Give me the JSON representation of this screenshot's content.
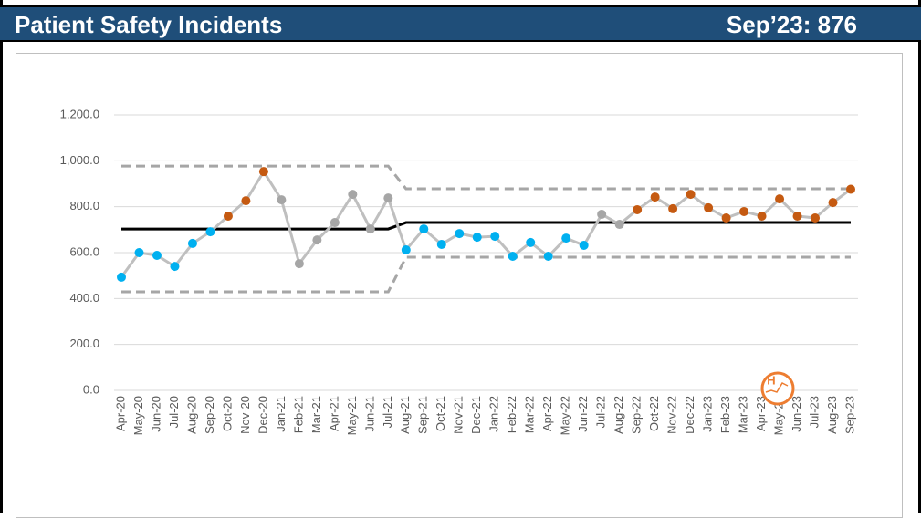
{
  "header": {
    "title": "Patient Safety Incidents",
    "kpi": "Sep’23: 876"
  },
  "icon_label": "H",
  "chart_data": {
    "type": "line",
    "categories": [
      "Apr-20",
      "May-20",
      "Jun-20",
      "Jul-20",
      "Aug-20",
      "Sep-20",
      "Oct-20",
      "Nov-20",
      "Dec-20",
      "Jan-21",
      "Feb-21",
      "Mar-21",
      "Apr-21",
      "May-21",
      "Jun-21",
      "Jul-21",
      "Aug-21",
      "Sep-21",
      "Oct-21",
      "Nov-21",
      "Dec-21",
      "Jan-22",
      "Feb-22",
      "Mar-22",
      "Apr-22",
      "May-22",
      "Jun-22",
      "Jul-22",
      "Aug-22",
      "Sep-22",
      "Oct-22",
      "Nov-22",
      "Dec-22",
      "Jan-23",
      "Feb-23",
      "Mar-23",
      "Apr-23",
      "May-23",
      "Jun-23",
      "Jul-23",
      "Aug-23",
      "Sep-23"
    ],
    "series": [
      {
        "color": "#000000",
        "dash": false,
        "values": [
          703,
          703,
          703,
          703,
          703,
          703,
          703,
          703,
          703,
          703,
          703,
          703,
          703,
          703,
          703,
          703,
          731,
          731,
          731,
          731,
          731,
          731,
          731,
          731,
          731,
          731,
          731,
          731,
          731,
          731,
          731,
          731,
          731,
          731,
          731,
          731,
          731,
          731,
          731,
          731,
          731,
          731
        ]
      },
      {
        "color": "#a6a6a6",
        "dash": true,
        "values": [
          977,
          977,
          977,
          977,
          977,
          977,
          977,
          977,
          977,
          977,
          977,
          977,
          977,
          977,
          977,
          977,
          878,
          878,
          878,
          878,
          878,
          878,
          878,
          878,
          878,
          878,
          878,
          878,
          878,
          878,
          878,
          878,
          878,
          878,
          878,
          878,
          878,
          878,
          878,
          878,
          878,
          878
        ]
      },
      {
        "color": "#a6a6a6",
        "dash": true,
        "values": [
          429,
          429,
          429,
          429,
          429,
          429,
          429,
          429,
          429,
          429,
          429,
          429,
          429,
          429,
          429,
          429,
          580,
          580,
          580,
          580,
          580,
          580,
          580,
          580,
          580,
          580,
          580,
          580,
          580,
          580,
          580,
          580,
          580,
          580,
          580,
          580,
          580,
          580,
          580,
          580,
          580,
          580
        ]
      },
      {
        "color": "#bfbfbf",
        "dash": false,
        "markers": true,
        "values": [
          493,
          600,
          588,
          540,
          640,
          691,
          759,
          826,
          953,
          830,
          552,
          655,
          731,
          854,
          703,
          838,
          612,
          703,
          636,
          683,
          667,
          671,
          584,
          644,
          584,
          663,
          632,
          767,
          723,
          787,
          842,
          791,
          854,
          795,
          751,
          779,
          759,
          834,
          759,
          751,
          818,
          876
        ],
        "point_colors": [
          "#00b0f0",
          "#00b0f0",
          "#00b0f0",
          "#00b0f0",
          "#00b0f0",
          "#00b0f0",
          "#c55a11",
          "#c55a11",
          "#c55a11",
          "#a6a6a6",
          "#a6a6a6",
          "#a6a6a6",
          "#a6a6a6",
          "#a6a6a6",
          "#a6a6a6",
          "#a6a6a6",
          "#00b0f0",
          "#00b0f0",
          "#00b0f0",
          "#00b0f0",
          "#00b0f0",
          "#00b0f0",
          "#00b0f0",
          "#00b0f0",
          "#00b0f0",
          "#00b0f0",
          "#00b0f0",
          "#a6a6a6",
          "#a6a6a6",
          "#c55a11",
          "#c55a11",
          "#c55a11",
          "#c55a11",
          "#c55a11",
          "#c55a11",
          "#c55a11",
          "#c55a11",
          "#c55a11",
          "#c55a11",
          "#c55a11",
          "#c55a11",
          "#c55a11"
        ]
      }
    ],
    "ylim": [
      0,
      1200
    ],
    "yticks": [
      {
        "value": 0,
        "label": "0.0"
      },
      {
        "value": 200,
        "label": "200.0"
      },
      {
        "value": 400,
        "label": "400.0"
      },
      {
        "value": 600,
        "label": "600.0"
      },
      {
        "value": 800,
        "label": "800.0"
      },
      {
        "value": 1000,
        "label": "1,000.0"
      },
      {
        "value": 1200,
        "label": "1,200.0"
      }
    ],
    "grid": true
  }
}
